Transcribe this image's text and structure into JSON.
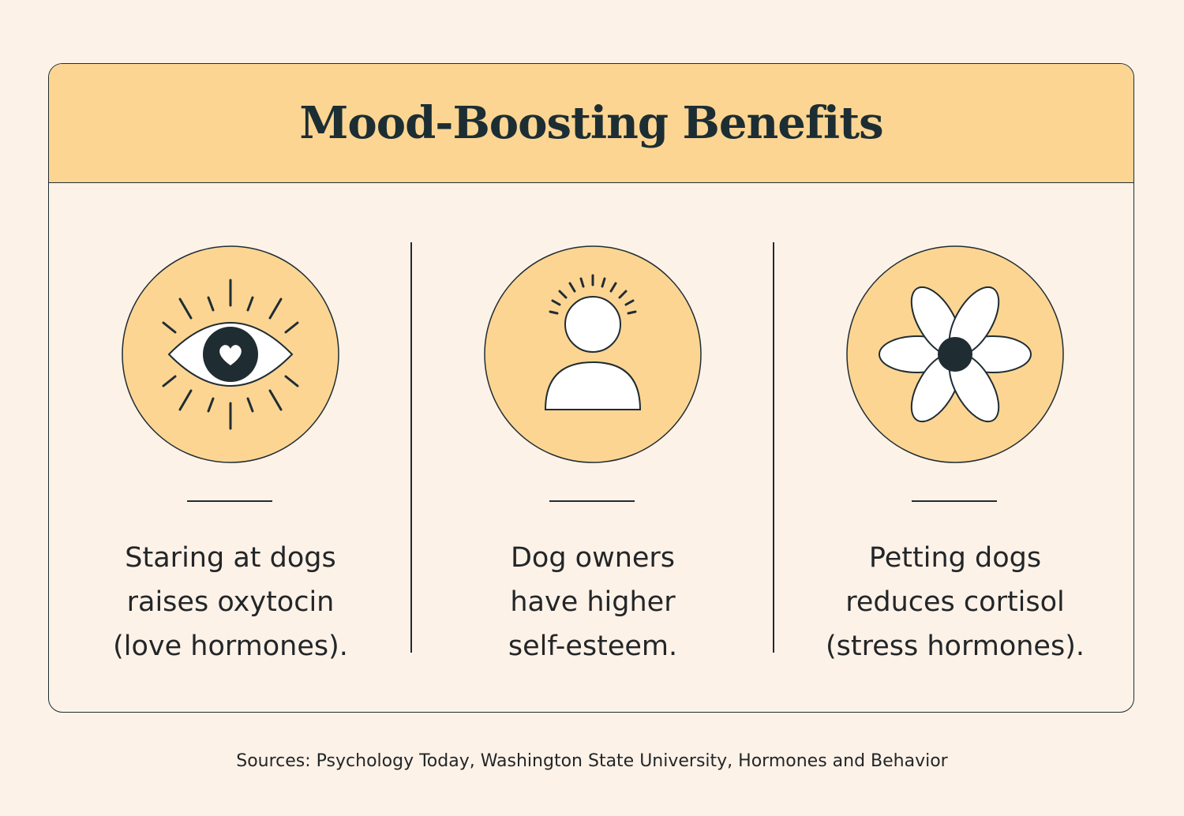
{
  "header": {
    "title": "Mood-Boosting Benefits"
  },
  "columns": [
    {
      "icon": "eye-heart-icon",
      "lines": [
        "Staring at dogs",
        "raises oxytocin",
        "(love hormones)."
      ]
    },
    {
      "icon": "person-glow-icon",
      "lines": [
        "Dog owners",
        "have higher",
        "self-esteem."
      ]
    },
    {
      "icon": "flower-icon",
      "lines": [
        "Petting dogs",
        "reduces cortisol",
        "(stress hormones)."
      ]
    }
  ],
  "footer": {
    "sources": "Sources: Psychology Today, Washington State University, Hormones and Behavior"
  },
  "colors": {
    "background": "#fdf2e8",
    "accent": "#fdd593",
    "ink": "#1f2d33",
    "white": "#ffffff"
  }
}
